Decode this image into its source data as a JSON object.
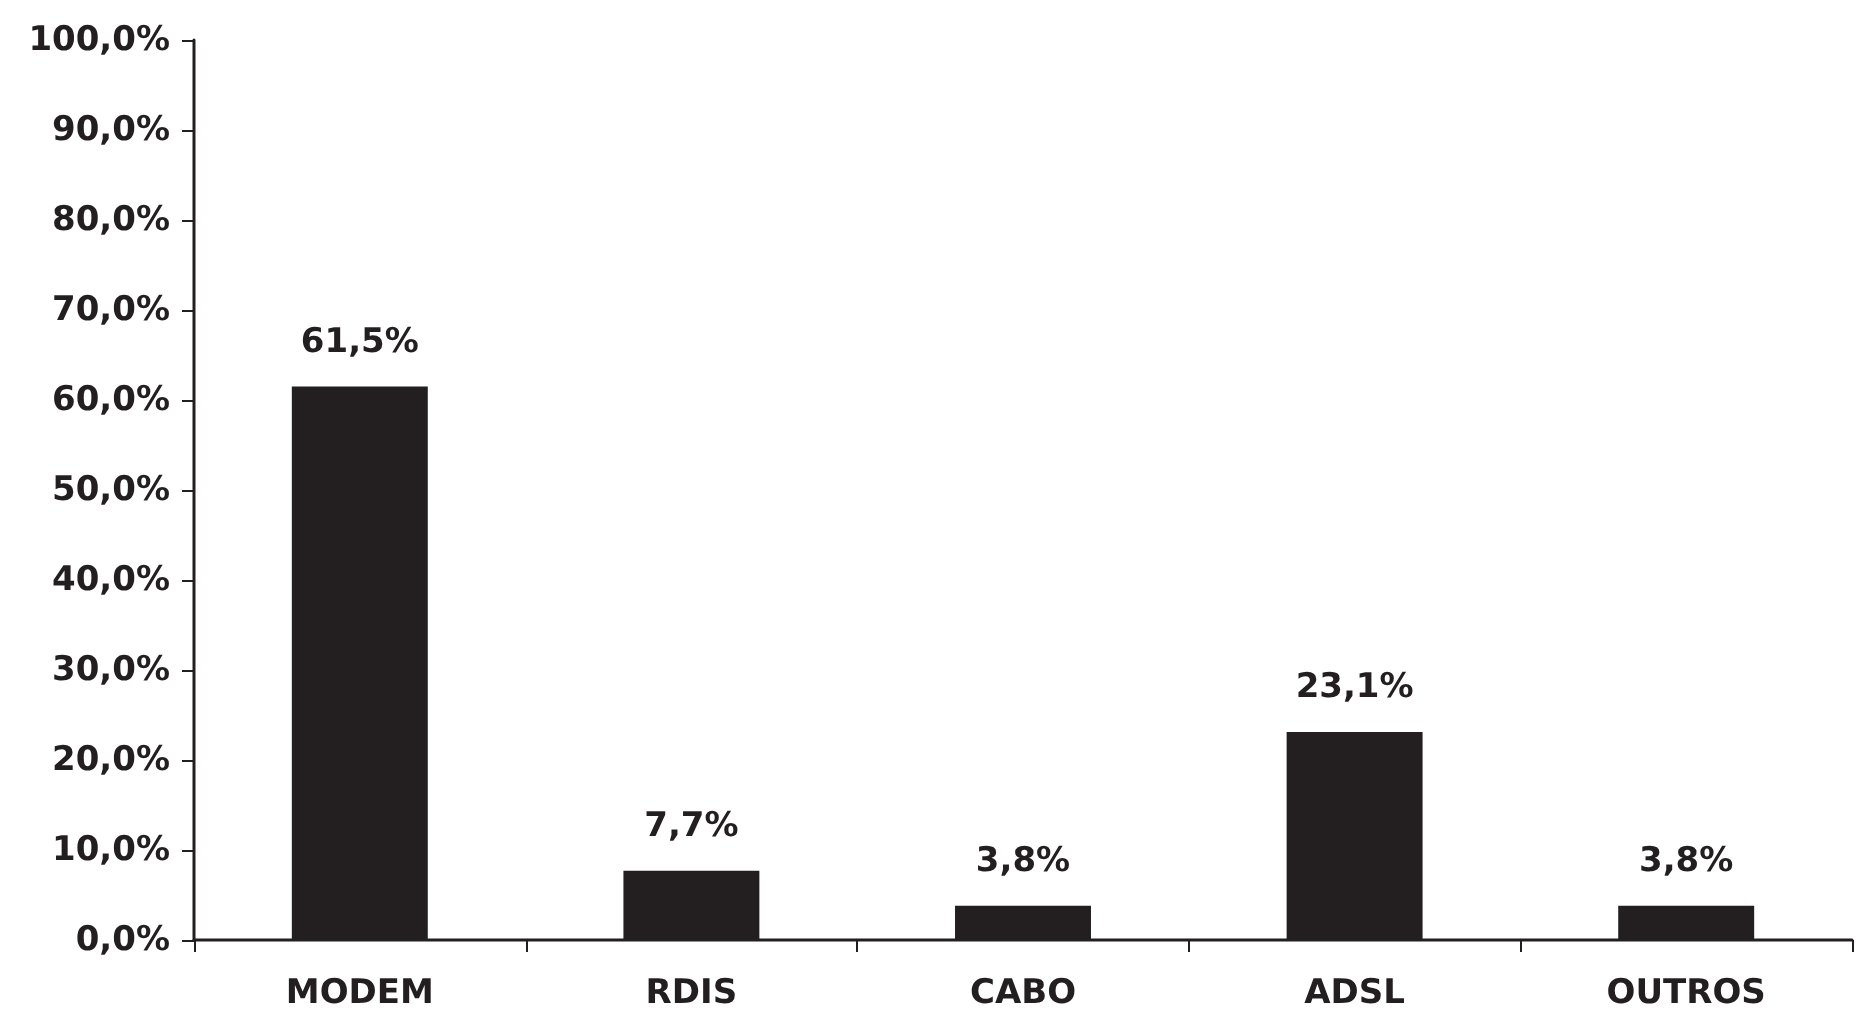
{
  "chart_data": {
    "type": "bar",
    "categories": [
      "MODEM",
      "RDIS",
      "CABO",
      "ADSL",
      "OUTROS"
    ],
    "values": [
      61.5,
      7.7,
      3.8,
      23.1,
      3.8
    ],
    "color": "#231f20",
    "value_labels": [
      "61,5%",
      "7,7%",
      "3,8%",
      "23,1%",
      "3,8%"
    ],
    "ylim": [
      0,
      100
    ],
    "yticks": [
      {
        "value": 0,
        "label": "0,0%"
      },
      {
        "value": 10,
        "label": "10,0%"
      },
      {
        "value": 20,
        "label": "20,0%"
      },
      {
        "value": 30,
        "label": "30,0%"
      },
      {
        "value": 40,
        "label": "40,0%"
      },
      {
        "value": 50,
        "label": "50,0%"
      },
      {
        "value": 60,
        "label": "60,0%"
      },
      {
        "value": 70,
        "label": "70,0%"
      },
      {
        "value": 80,
        "label": "80,0%"
      },
      {
        "value": 90,
        "label": "90,0%"
      },
      {
        "value": 100,
        "label": "100,0%"
      }
    ],
    "grid": false
  }
}
